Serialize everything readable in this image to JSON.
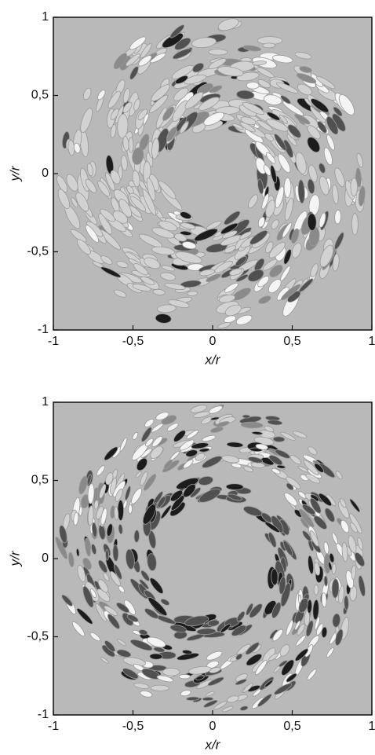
{
  "chart_data": [
    {
      "type": "contour",
      "xlabel": "x/r",
      "ylabel": "y/r",
      "xlim": [
        -1,
        1
      ],
      "ylim": [
        -1,
        1
      ],
      "xticks": [
        -1,
        {
          "value": -0.5,
          "label": "-0,5"
        },
        0,
        {
          "value": 0.5,
          "label": "0,5"
        },
        1
      ],
      "yticks": [
        -1,
        {
          "value": -0.5,
          "label": "-0,5"
        },
        0,
        {
          "value": 0.5,
          "label": "0,5"
        },
        1
      ]
    },
    {
      "type": "contour",
      "xlabel": "x/r",
      "ylabel": "y/r",
      "xlim": [
        -1,
        1
      ],
      "ylim": [
        -1,
        1
      ],
      "xticks": [
        -1,
        {
          "value": -0.5,
          "label": "-0,5"
        },
        0,
        {
          "value": 0.5,
          "label": "0,5"
        },
        1
      ],
      "yticks": [
        -1,
        {
          "value": -0.5,
          "label": "-0,5"
        },
        0,
        {
          "value": 0.5,
          "label": "0,5"
        },
        1
      ]
    }
  ]
}
